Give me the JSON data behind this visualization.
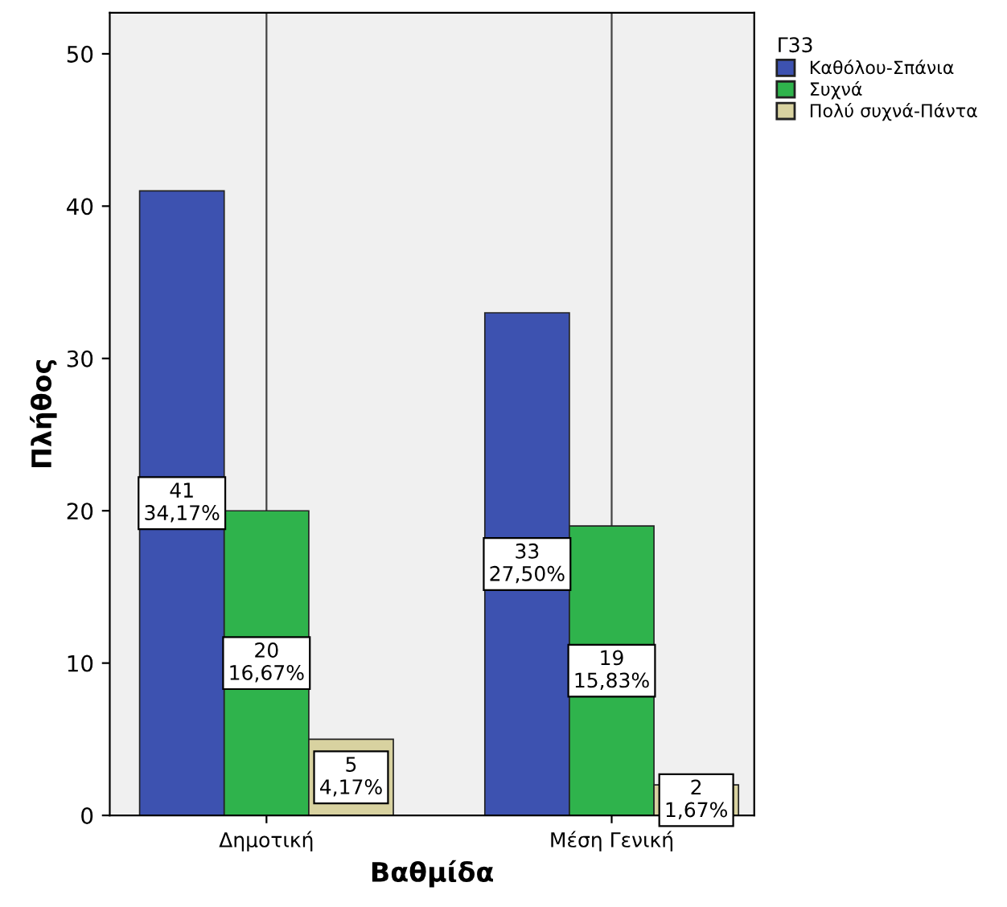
{
  "chart_data": {
    "type": "bar",
    "xlabel": "Βαθμίδα",
    "ylabel": "Πλήθος",
    "legend_title": "Γ33",
    "categories": [
      "Δημοτική",
      "Μέση Γενική"
    ],
    "series": [
      {
        "name": "Καθόλου-Σπάνια",
        "color": "#3d52b0",
        "values": [
          41,
          33
        ],
        "value_labels": [
          "41\n34,17%",
          "33\n27,50%"
        ]
      },
      {
        "name": "Συχνά",
        "color": "#2fb34c",
        "values": [
          20,
          19
        ],
        "value_labels": [
          "20\n16,67%",
          "19\n15,83%"
        ]
      },
      {
        "name": "Πολύ συχνά-Πάντα",
        "color": "#d8d2a0",
        "values": [
          5,
          2
        ],
        "value_labels": [
          "5\n4,17%",
          "2\n1,67%"
        ]
      }
    ],
    "ylim": [
      0,
      52.7
    ],
    "yticks": [
      0,
      10,
      20,
      30,
      40,
      50
    ],
    "grid": "x",
    "legend": "top right"
  }
}
